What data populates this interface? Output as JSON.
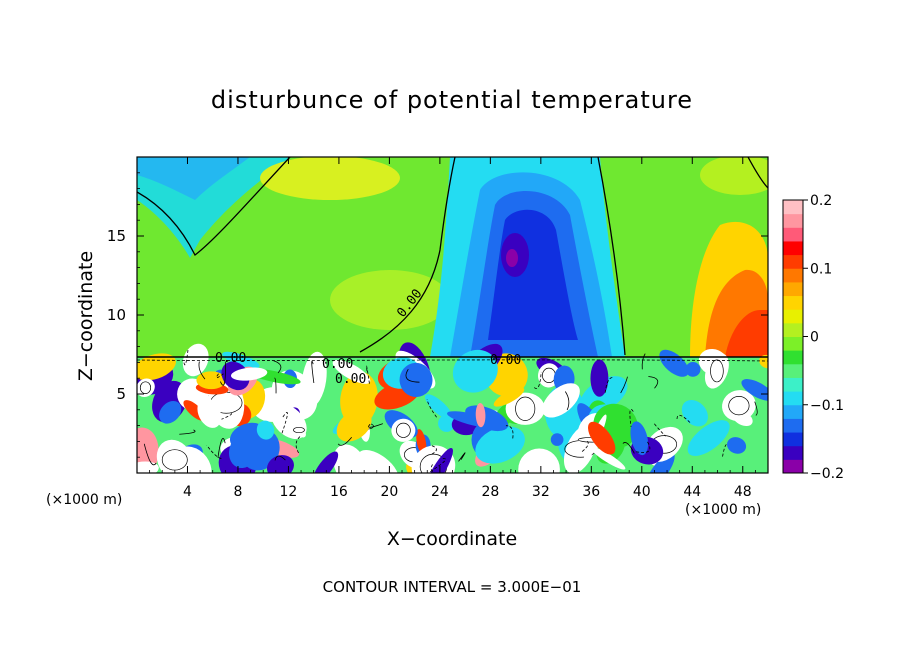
{
  "chart_data": {
    "type": "heatmap",
    "title": "disturbunce of potential temperature",
    "xlabel": "X−coordinate",
    "ylabel": "Z−coordinate",
    "x_unit_left": "(×1000 m)",
    "x_unit_right": "(×1000 m)",
    "xlim": [
      0,
      50
    ],
    "ylim": [
      0,
      20
    ],
    "xticks": [
      4,
      8,
      12,
      16,
      20,
      24,
      28,
      32,
      36,
      40,
      44,
      48
    ],
    "xtick_labels": [
      "4",
      "8",
      "12",
      "16",
      "20",
      "24",
      "28",
      "32",
      "36",
      "40",
      "44",
      "48"
    ],
    "yticks": [
      5,
      10,
      15
    ],
    "ytick_labels": [
      "5",
      "10",
      "15"
    ],
    "colorbar": {
      "range": [
        -0.2,
        0.2
      ],
      "tick_values": [
        0.2,
        0.1,
        0,
        -0.1,
        -0.2
      ],
      "tick_labels": [
        "0.2",
        "0.1",
        "0",
        "−0.1",
        "−0.2"
      ],
      "colors": [
        "#8a00a8",
        "#3a00c0",
        "#1030e0",
        "#1e6cf0",
        "#22a8f8",
        "#24dcf2",
        "#3cf0c8",
        "#58f07a",
        "#30e030",
        "#7cf028",
        "#b4f020",
        "#e8f000",
        "#ffd400",
        "#ffa800",
        "#ff7800",
        "#ff3c00",
        "#ff0000",
        "#ff5a78",
        "#ff96a0",
        "#ffc0c4"
      ]
    },
    "contour_labels": [
      "0.00",
      "0.00",
      "0.00",
      "0.00",
      "0.00"
    ],
    "contour_interval_text": "CONTOUR INTERVAL = 3.000E−01"
  }
}
